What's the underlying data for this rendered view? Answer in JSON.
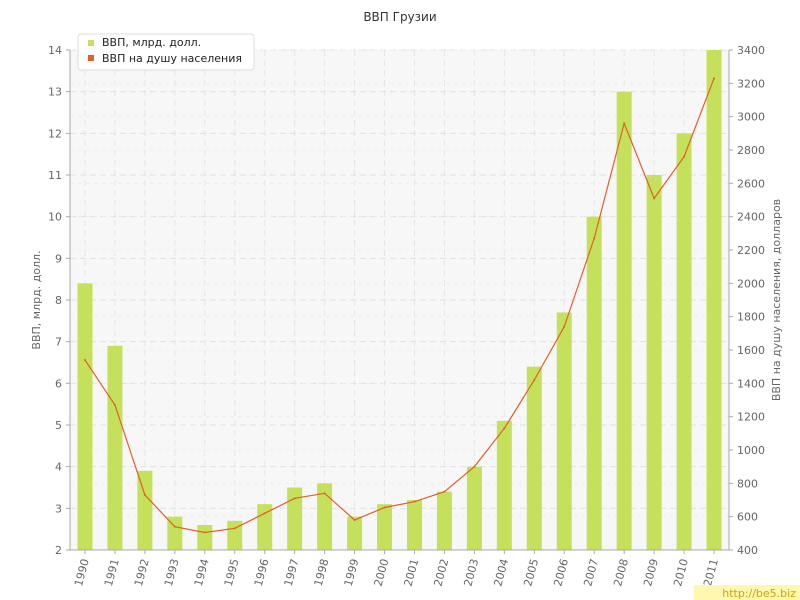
{
  "chart_data": {
    "type": "bar",
    "title": "ВВП Грузии",
    "categories": [
      "1990",
      "1991",
      "1992",
      "1993",
      "1994",
      "1995",
      "1996",
      "1997",
      "1998",
      "1999",
      "2000",
      "2001",
      "2002",
      "2003",
      "2004",
      "2005",
      "2006",
      "2007",
      "2008",
      "2009",
      "2010",
      "2011"
    ],
    "series": [
      {
        "name": "ВВП, млрд. долл.",
        "type": "bar",
        "axis": "left",
        "color": "#c5e05a",
        "values": [
          8.4,
          6.9,
          3.9,
          2.8,
          2.6,
          2.7,
          3.1,
          3.5,
          3.6,
          2.8,
          3.1,
          3.2,
          3.4,
          4.0,
          5.1,
          6.4,
          7.7,
          10.0,
          13.0,
          11.0,
          12.0,
          14.0
        ]
      },
      {
        "name": "ВВП на душу населения",
        "type": "line",
        "axis": "right",
        "color": "#e0602a",
        "values": [
          1540,
          1270,
          730,
          540,
          505,
          530,
          620,
          710,
          740,
          580,
          655,
          690,
          750,
          900,
          1130,
          1420,
          1740,
          2270,
          2960,
          2510,
          2760,
          3230
        ]
      }
    ],
    "ylabel": "ВВП, млрд. долл.",
    "y2label": "ВВП на душу населения, долларов",
    "ylim": [
      2,
      14
    ],
    "y2lim": [
      400,
      3400
    ],
    "yticks": [
      "2",
      "3",
      "4",
      "5",
      "6",
      "7",
      "8",
      "9",
      "10",
      "11",
      "12",
      "13",
      "14"
    ],
    "y2ticks": [
      "400",
      "600",
      "800",
      "1000",
      "1200",
      "1400",
      "1600",
      "1800",
      "2000",
      "2200",
      "2400",
      "2600",
      "2800",
      "3000",
      "3200",
      "3400"
    ],
    "grid": true,
    "legend_position": "top-left"
  },
  "watermark": "http://be5.biz"
}
